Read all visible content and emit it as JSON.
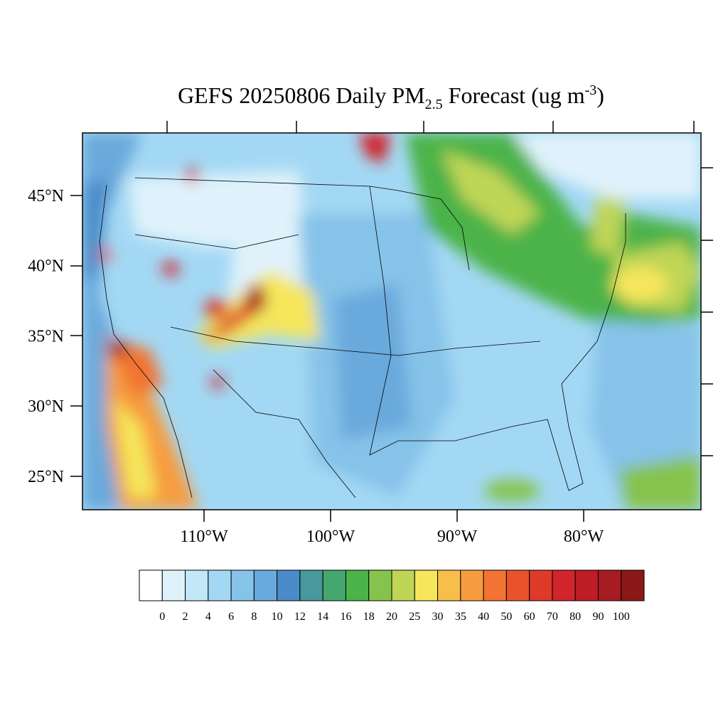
{
  "title": {
    "main": "GEFS 20250806 Daily PM",
    "subscript": "2.5",
    "middle": " Forecast (ug m",
    "superscript": "-3",
    "end": ")"
  },
  "map": {
    "lat_labels": [
      "45°N",
      "40°N",
      "35°N",
      "30°N",
      "25°N"
    ],
    "lon_labels": [
      "110°W",
      "100°W",
      "90°W",
      "80°W"
    ]
  },
  "colorbar": {
    "levels": [
      0,
      2,
      4,
      6,
      8,
      10,
      12,
      14,
      16,
      18,
      20,
      25,
      30,
      35,
      40,
      50,
      60,
      70,
      80,
      90,
      100
    ],
    "colors": [
      "#ffffff",
      "#dff2fb",
      "#c2e7f8",
      "#a3d8f4",
      "#86c3e9",
      "#6aa9dc",
      "#4a8bc8",
      "#47999c",
      "#45a76d",
      "#4bb349",
      "#86c34c",
      "#bfd556",
      "#f5e65c",
      "#f7bf4a",
      "#f69c3f",
      "#f27332",
      "#e9532c",
      "#dd3a2a",
      "#d2242c",
      "#bd1d27",
      "#a61c22",
      "#8c1719"
    ]
  }
}
